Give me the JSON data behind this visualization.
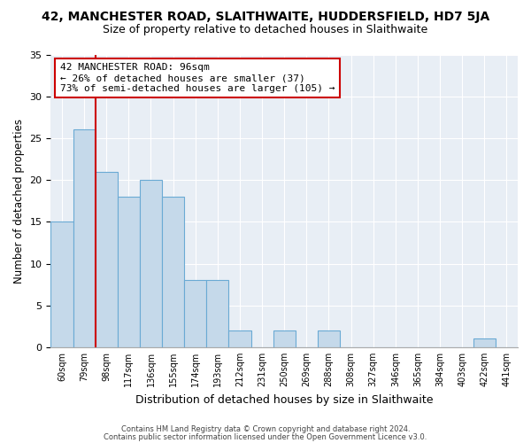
{
  "title1": "42, MANCHESTER ROAD, SLAITHWAITE, HUDDERSFIELD, HD7 5JA",
  "title2": "Size of property relative to detached houses in Slaithwaite",
  "xlabel": "Distribution of detached houses by size in Slaithwaite",
  "ylabel": "Number of detached properties",
  "tick_labels": [
    "60sqm",
    "79sqm",
    "98sqm",
    "117sqm",
    "136sqm",
    "155sqm",
    "174sqm",
    "193sqm",
    "212sqm",
    "231sqm",
    "250sqm",
    "269sqm",
    "288sqm",
    "308sqm",
    "327sqm",
    "346sqm",
    "365sqm",
    "384sqm",
    "403sqm",
    "422sqm",
    "441sqm"
  ],
  "bar_heights": [
    15,
    26,
    21,
    18,
    20,
    18,
    8,
    8,
    2,
    0,
    2,
    0,
    2,
    0,
    0,
    0,
    0,
    0,
    0,
    1,
    0
  ],
  "bar_color": "#c5d9ea",
  "bar_edge_color": "#6aaad4",
  "vline_x_bar_idx": 2,
  "vline_color": "#cc0000",
  "annotation_title": "42 MANCHESTER ROAD: 96sqm",
  "annotation_line1": "← 26% of detached houses are smaller (37)",
  "annotation_line2": "73% of semi-detached houses are larger (105) →",
  "annotation_box_color": "#ffffff",
  "annotation_box_edge": "#cc0000",
  "ylim": [
    0,
    35
  ],
  "yticks": [
    0,
    5,
    10,
    15,
    20,
    25,
    30,
    35
  ],
  "footer1": "Contains HM Land Registry data © Crown copyright and database right 2024.",
  "footer2": "Contains public sector information licensed under the Open Government Licence v3.0.",
  "bg_color": "#ffffff",
  "plot_bg_color": "#e8eef5",
  "grid_color": "#ffffff",
  "title1_fontsize": 10,
  "title2_fontsize": 9
}
